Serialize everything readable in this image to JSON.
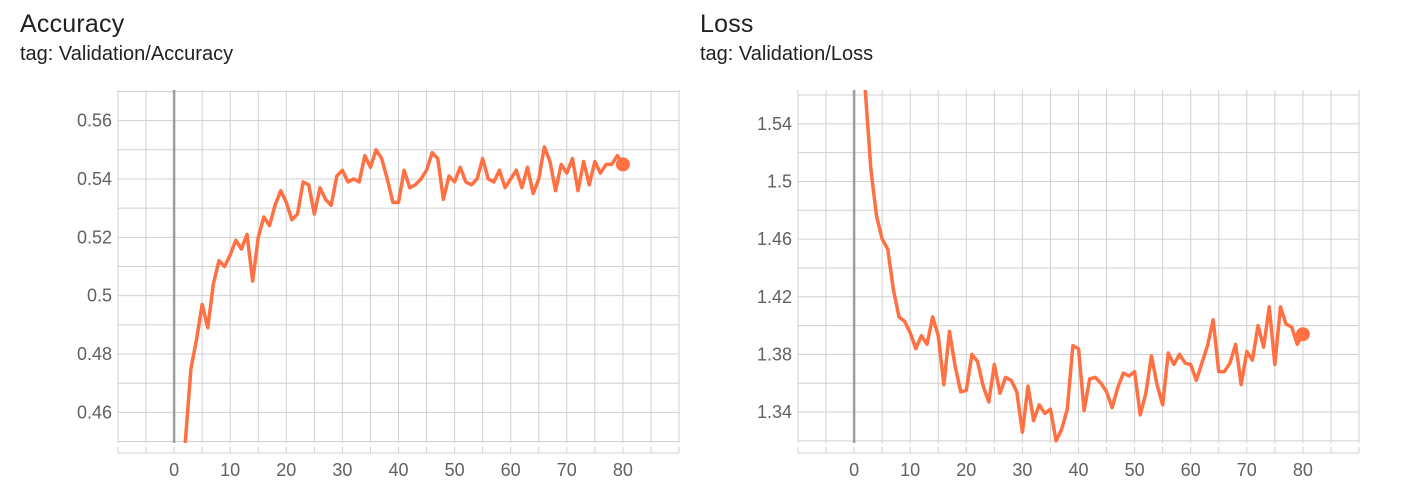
{
  "colors": {
    "line": "#ff7043",
    "grid": "#d0d0d0",
    "zero_axis": "#9e9e9e",
    "tick_text": "#616161",
    "title_text": "#212121"
  },
  "chart_data": [
    {
      "type": "line",
      "title": "Accuracy",
      "subtitle": "tag: Validation/Accuracy",
      "xlabel": "",
      "ylabel": "",
      "grid": true,
      "xlim": [
        -10,
        90
      ],
      "ylim": [
        0.4495,
        0.5705
      ],
      "x_ticks": [
        0,
        10,
        20,
        30,
        40,
        50,
        60,
        70,
        80
      ],
      "x_tick_labels": [
        "0",
        "10",
        "20",
        "30",
        "40",
        "50",
        "60",
        "70",
        "80"
      ],
      "y_ticks": [
        0.46,
        0.48,
        0.5,
        0.52,
        0.54,
        0.56
      ],
      "y_tick_labels": [
        "0.46",
        "0.48",
        "0.5",
        "0.52",
        "0.54",
        "0.56"
      ],
      "series": [
        {
          "x": [
            2,
            3,
            4,
            5,
            6,
            7,
            8,
            9,
            10,
            11,
            12,
            13,
            14,
            15,
            16,
            17,
            18,
            19,
            20,
            21,
            22,
            23,
            24,
            25,
            26,
            27,
            28,
            29,
            30,
            31,
            32,
            33,
            34,
            35,
            36,
            37,
            38,
            39,
            40,
            41,
            42,
            43,
            44,
            45,
            46,
            47,
            48,
            49,
            50,
            51,
            52,
            53,
            54,
            55,
            56,
            57,
            58,
            59,
            60,
            61,
            62,
            63,
            64,
            65,
            66,
            67,
            68,
            69,
            70,
            71,
            72,
            73,
            74,
            75,
            76,
            77,
            78,
            79,
            80
          ],
          "y": [
            0.45,
            0.475,
            0.485,
            0.497,
            0.489,
            0.504,
            0.512,
            0.51,
            0.514,
            0.519,
            0.516,
            0.521,
            0.505,
            0.52,
            0.527,
            0.524,
            0.531,
            0.536,
            0.532,
            0.526,
            0.528,
            0.539,
            0.538,
            0.528,
            0.537,
            0.533,
            0.531,
            0.541,
            0.543,
            0.539,
            0.54,
            0.539,
            0.548,
            0.544,
            0.55,
            0.547,
            0.54,
            0.532,
            0.532,
            0.543,
            0.537,
            0.538,
            0.54,
            0.543,
            0.549,
            0.547,
            0.533,
            0.541,
            0.539,
            0.544,
            0.539,
            0.538,
            0.54,
            0.547,
            0.54,
            0.539,
            0.543,
            0.537,
            0.54,
            0.543,
            0.537,
            0.544,
            0.535,
            0.54,
            0.551,
            0.546,
            0.536,
            0.545,
            0.542,
            0.547,
            0.536,
            0.546,
            0.538,
            0.546,
            0.542,
            0.545,
            0.545,
            0.548,
            0.545
          ]
        }
      ]
    },
    {
      "type": "line",
      "title": "Loss",
      "subtitle": "tag: Validation/Loss",
      "xlabel": "",
      "ylabel": "",
      "grid": true,
      "xlim": [
        -10,
        90
      ],
      "ylim": [
        1.3185,
        1.5635
      ],
      "x_ticks": [
        0,
        10,
        20,
        30,
        40,
        50,
        60,
        70,
        80
      ],
      "x_tick_labels": [
        "0",
        "10",
        "20",
        "30",
        "40",
        "50",
        "60",
        "70",
        "80"
      ],
      "y_ticks": [
        1.34,
        1.38,
        1.42,
        1.46,
        1.5,
        1.54
      ],
      "y_tick_labels": [
        "1.34",
        "1.38",
        "1.42",
        "1.46",
        "1.5",
        "1.54"
      ],
      "series": [
        {
          "x": [
            2,
            3,
            4,
            5,
            6,
            7,
            8,
            9,
            10,
            11,
            12,
            13,
            14,
            15,
            16,
            17,
            18,
            19,
            20,
            21,
            22,
            23,
            24,
            25,
            26,
            27,
            28,
            29,
            30,
            31,
            32,
            33,
            34,
            35,
            36,
            37,
            38,
            39,
            40,
            41,
            42,
            43,
            44,
            45,
            46,
            47,
            48,
            49,
            50,
            51,
            52,
            53,
            54,
            55,
            56,
            57,
            58,
            59,
            60,
            61,
            62,
            63,
            64,
            65,
            66,
            67,
            68,
            69,
            70,
            71,
            72,
            73,
            74,
            75,
            76,
            77,
            78,
            79,
            80
          ],
          "y": [
            1.563,
            1.508,
            1.476,
            1.46,
            1.453,
            1.425,
            1.406,
            1.403,
            1.395,
            1.384,
            1.393,
            1.387,
            1.406,
            1.393,
            1.359,
            1.396,
            1.372,
            1.354,
            1.355,
            1.38,
            1.375,
            1.358,
            1.347,
            1.373,
            1.353,
            1.364,
            1.362,
            1.354,
            1.326,
            1.358,
            1.334,
            1.345,
            1.339,
            1.342,
            1.32,
            1.328,
            1.342,
            1.386,
            1.384,
            1.341,
            1.363,
            1.364,
            1.36,
            1.354,
            1.343,
            1.357,
            1.367,
            1.365,
            1.368,
            1.338,
            1.353,
            1.379,
            1.359,
            1.345,
            1.381,
            1.373,
            1.38,
            1.374,
            1.373,
            1.362,
            1.374,
            1.386,
            1.404,
            1.368,
            1.368,
            1.374,
            1.387,
            1.359,
            1.382,
            1.376,
            1.4,
            1.385,
            1.413,
            1.373,
            1.413,
            1.401,
            1.399,
            1.387,
            1.394
          ]
        }
      ]
    }
  ]
}
